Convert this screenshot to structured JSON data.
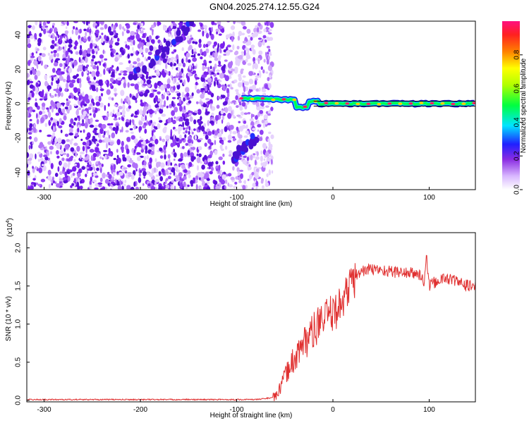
{
  "title": "GN04.2025.274.12.55.G24",
  "chart_data": [
    {
      "type": "heatmap",
      "name": "spectrogram",
      "xlabel": "Height of straight line (km)",
      "ylabel": "Frequency (Hz)",
      "xlim": [
        -318,
        148
      ],
      "ylim": [
        -50,
        48
      ],
      "xticks": [
        -300,
        -200,
        -100,
        0,
        100
      ],
      "yticks": [
        -40,
        -20,
        0,
        20,
        40
      ],
      "colorbar": {
        "label": "Normalized spectral amplitude",
        "range": [
          0,
          1
        ],
        "ticks": [
          0.0,
          0.2,
          0.4,
          0.6,
          0.8
        ]
      },
      "features": [
        {
          "label": "noise",
          "x_range": [
            -318,
            -75
          ],
          "y_range": [
            -50,
            48
          ]
        },
        {
          "label": "carrier",
          "x_range": [
            -95,
            148
          ],
          "frequency": 0
        },
        {
          "label": "diagonal-streak-upper",
          "from": [
            -210,
            14
          ],
          "to": [
            -145,
            46
          ]
        },
        {
          "label": "diagonal-streak-lower",
          "from": [
            -105,
            -32
          ],
          "to": [
            -80,
            -20
          ]
        }
      ]
    },
    {
      "type": "line",
      "name": "snr",
      "xlabel": "Height of straight line (km)",
      "ylabel": "SNR (10 * v/v)",
      "ymultiplier": "(x10",
      "ymultiplier_exp": "4",
      "ymultiplier_close": ")",
      "xlim": [
        -318,
        148
      ],
      "ylim": [
        -0.02,
        2.2
      ],
      "xticks": [
        -300,
        -200,
        -100,
        0,
        100
      ],
      "yticks": [
        0.0,
        0.5,
        1.0,
        1.5,
        2.0
      ],
      "series": [
        {
          "name": "SNR",
          "color": "#e03030",
          "x": [
            -318,
            -250,
            -150,
            -80,
            -60,
            -55,
            -50,
            -45,
            -40,
            -35,
            -30,
            -25,
            -20,
            -15,
            -10,
            -5,
            0,
            5,
            10,
            15,
            20,
            25,
            30,
            40,
            50,
            60,
            70,
            80,
            90,
            95,
            97,
            100,
            110,
            120,
            130,
            140,
            148
          ],
          "y": [
            0.01,
            0.01,
            0.01,
            0.01,
            0.04,
            0.15,
            0.3,
            0.45,
            0.55,
            0.65,
            0.75,
            0.85,
            0.9,
            1.0,
            1.05,
            1.1,
            1.15,
            1.2,
            1.3,
            1.45,
            1.55,
            1.62,
            1.7,
            1.72,
            1.71,
            1.69,
            1.68,
            1.67,
            1.65,
            1.55,
            1.9,
            1.5,
            1.58,
            1.6,
            1.55,
            1.5,
            1.5
          ]
        }
      ]
    }
  ]
}
